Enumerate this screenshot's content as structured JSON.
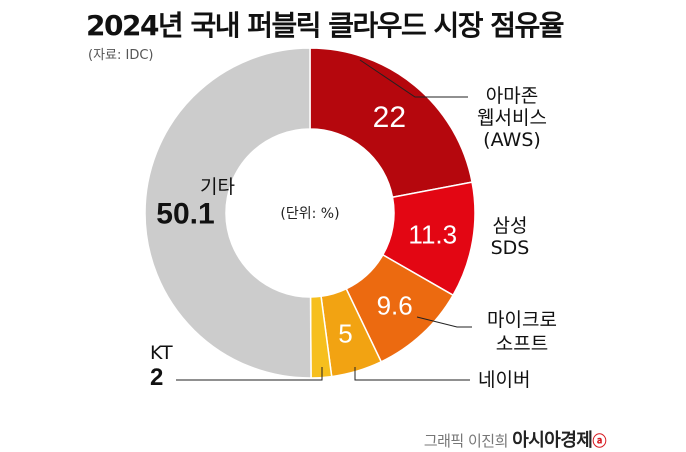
{
  "title": "2024년 국내 퍼블릭 클라우드 시장 점유율",
  "source": "(자료: IDC)",
  "footer": {
    "credit": "그래픽 이진희",
    "brand": "아시아경제",
    "brand_mark": "ⓐ"
  },
  "chart_data": {
    "type": "pie",
    "title": "2024년 국내 퍼블릭 클라우드 시장 점유율",
    "unit_label": "(단위: %)",
    "slices": [
      {
        "label": "아마존 웹서비스 (AWS)",
        "label_lines": [
          "아마존",
          "웹서비스",
          "(AWS)"
        ],
        "value": 22,
        "value_label": "22",
        "color": "#b5070d"
      },
      {
        "label": "삼성 SDS",
        "label_lines": [
          "삼성",
          "SDS"
        ],
        "value": 11.3,
        "value_label": "11.3",
        "color": "#e30613"
      },
      {
        "label": "마이크로소프트",
        "label_lines": [
          "마이크로",
          "소프트"
        ],
        "value": 9.6,
        "value_label": "9.6",
        "color": "#ec6a10"
      },
      {
        "label": "네이버",
        "label_lines": [
          "네이버"
        ],
        "value": 5,
        "value_label": "5",
        "color": "#f2a312"
      },
      {
        "label": "KT",
        "label_lines": [
          "KT"
        ],
        "value": 2,
        "value_label": "2",
        "color": "#f6bf1e"
      },
      {
        "label": "기타",
        "label_lines": [
          "기타"
        ],
        "value": 50.1,
        "value_label": "50.1",
        "color": "#cccccc"
      }
    ]
  }
}
